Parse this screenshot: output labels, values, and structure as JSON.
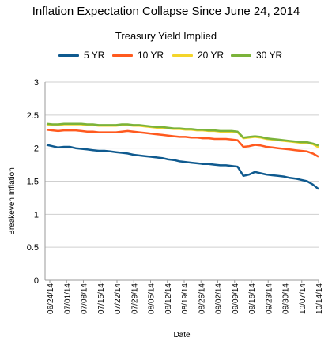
{
  "chart_data": {
    "type": "line",
    "title": "Inflation Expectation Collapse Since June 24, 2014",
    "subtitle": "Treasury Yield Implied",
    "xlabel": "Date",
    "ylabel": "Breakeven Inflation",
    "ylim": [
      0,
      3
    ],
    "yticks": [
      "0",
      "0.5",
      "1",
      "1.5",
      "2",
      "2.5",
      "3"
    ],
    "grid": "horizontal",
    "legend_position": "top",
    "x_tick_labels": [
      "06/24/14",
      "07/01/14",
      "07/08/14",
      "07/15/14",
      "07/22/14",
      "07/29/14",
      "08/05/14",
      "08/12/14",
      "08/19/14",
      "08/26/14",
      "09/02/14",
      "09/09/14",
      "09/16/14",
      "09/23/14",
      "09/30/14",
      "10/07/14",
      "10/14/14"
    ],
    "series": [
      {
        "name": "5 YR",
        "color": "#0f5a8f",
        "values": [
          2.05,
          2.03,
          2.01,
          2.02,
          2.02,
          2.0,
          1.99,
          1.98,
          1.97,
          1.96,
          1.96,
          1.95,
          1.94,
          1.93,
          1.92,
          1.9,
          1.89,
          1.88,
          1.87,
          1.86,
          1.85,
          1.83,
          1.82,
          1.8,
          1.79,
          1.78,
          1.77,
          1.76,
          1.76,
          1.75,
          1.74,
          1.74,
          1.73,
          1.72,
          1.58,
          1.6,
          1.64,
          1.62,
          1.6,
          1.59,
          1.58,
          1.57,
          1.55,
          1.54,
          1.52,
          1.5,
          1.45,
          1.38
        ]
      },
      {
        "name": "10 YR",
        "color": "#ff5a1f",
        "values": [
          2.28,
          2.27,
          2.26,
          2.27,
          2.27,
          2.27,
          2.26,
          2.25,
          2.25,
          2.24,
          2.24,
          2.24,
          2.24,
          2.25,
          2.26,
          2.25,
          2.24,
          2.23,
          2.22,
          2.21,
          2.2,
          2.19,
          2.18,
          2.17,
          2.17,
          2.16,
          2.16,
          2.15,
          2.15,
          2.14,
          2.14,
          2.14,
          2.13,
          2.12,
          2.02,
          2.03,
          2.05,
          2.04,
          2.02,
          2.01,
          2.0,
          1.99,
          1.98,
          1.97,
          1.96,
          1.95,
          1.92,
          1.87
        ]
      },
      {
        "name": "20 YR",
        "color": "#f4d52a",
        "values": [
          2.36,
          2.35,
          2.35,
          2.36,
          2.36,
          2.36,
          2.36,
          2.35,
          2.35,
          2.34,
          2.34,
          2.34,
          2.34,
          2.35,
          2.35,
          2.34,
          2.34,
          2.33,
          2.32,
          2.31,
          2.31,
          2.3,
          2.29,
          2.29,
          2.28,
          2.28,
          2.27,
          2.27,
          2.26,
          2.26,
          2.25,
          2.25,
          2.25,
          2.24,
          2.15,
          2.16,
          2.17,
          2.16,
          2.14,
          2.13,
          2.12,
          2.11,
          2.1,
          2.09,
          2.08,
          2.08,
          2.06,
          2.01
        ]
      },
      {
        "name": "30 YR",
        "color": "#7bb33a",
        "values": [
          2.37,
          2.36,
          2.36,
          2.37,
          2.37,
          2.37,
          2.37,
          2.36,
          2.36,
          2.35,
          2.35,
          2.35,
          2.35,
          2.36,
          2.36,
          2.35,
          2.35,
          2.34,
          2.33,
          2.32,
          2.32,
          2.31,
          2.3,
          2.3,
          2.29,
          2.29,
          2.28,
          2.28,
          2.27,
          2.27,
          2.26,
          2.26,
          2.26,
          2.25,
          2.16,
          2.17,
          2.18,
          2.17,
          2.15,
          2.14,
          2.13,
          2.12,
          2.11,
          2.1,
          2.09,
          2.09,
          2.07,
          2.04
        ]
      }
    ]
  }
}
